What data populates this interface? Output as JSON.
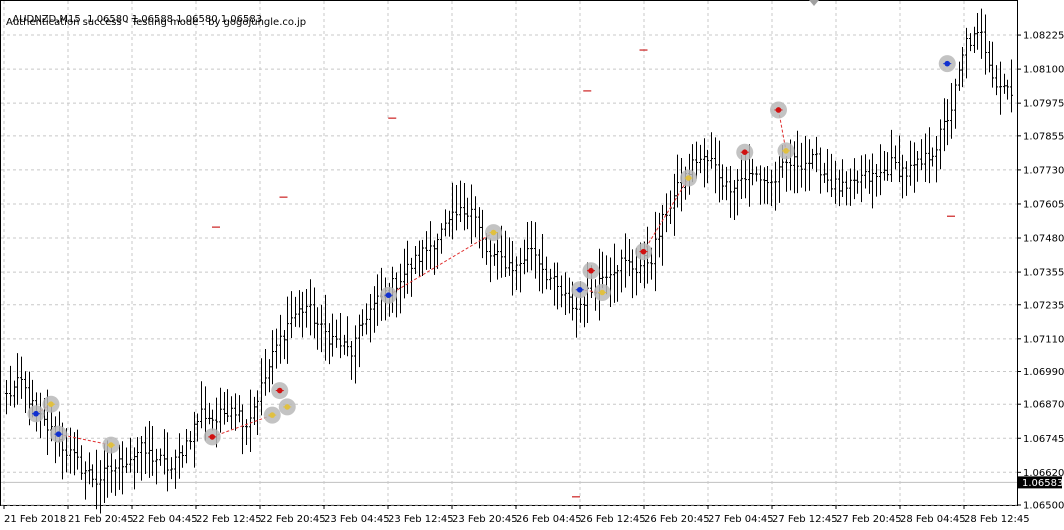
{
  "header": {
    "symbol": "AUDNZD,M15",
    "ohlc": "1.06580 1.06588 1.06580 1.06583",
    "status": "Authentication success - Testing mode : by gogojungle.co.jp"
  },
  "colors": {
    "background": "#ffffff",
    "grid": "#c8c8c8",
    "bars": "#000000",
    "buy_marker": "#1030d0",
    "sell_marker": "#d01010",
    "close_marker": "#e0c040",
    "marker_halo": "#b8b8b8",
    "trade_line": "#e03030",
    "level_dash": "#cc2020",
    "price_box": "#000000",
    "price_box_text": "#ffffff"
  },
  "chart_data": {
    "type": "ohlc",
    "symbol": "AUDNZD",
    "timeframe": "M15",
    "current_price": "1.06583",
    "ylim": [
      1.065,
      1.0835
    ],
    "y_ticks": [
      "1.08225",
      "1.08100",
      "1.07975",
      "1.07855",
      "1.07730",
      "1.07605",
      "1.07480",
      "1.07355",
      "1.07235",
      "1.07110",
      "1.06990",
      "1.06870",
      "1.06745",
      "1.06620",
      "1.06500"
    ],
    "x_ticks": [
      "21 Feb 2018",
      "21 Feb 20:45",
      "22 Feb 04:45",
      "22 Feb 12:45",
      "22 Feb 20:45",
      "23 Feb 04:45",
      "23 Feb 12:45",
      "23 Feb 20:45",
      "26 Feb 04:45",
      "26 Feb 12:45",
      "26 Feb 20:45",
      "27 Feb 04:45",
      "27 Feb 12:45",
      "27 Feb 20:45",
      "28 Feb 04:45",
      "28 Feb 12:45"
    ],
    "grid": true,
    "price_path": [
      [
        0,
        1.069
      ],
      [
        4,
        1.0695
      ],
      [
        8,
        1.0683
      ],
      [
        12,
        1.0677
      ],
      [
        16,
        1.067
      ],
      [
        20,
        1.0664
      ],
      [
        24,
        1.0659
      ],
      [
        28,
        1.0663
      ],
      [
        32,
        1.0667
      ],
      [
        36,
        1.067
      ],
      [
        40,
        1.0667
      ],
      [
        44,
        1.0663
      ],
      [
        48,
        1.0673
      ],
      [
        52,
        1.0684
      ],
      [
        56,
        1.0681
      ],
      [
        60,
        1.0687
      ],
      [
        64,
        1.068
      ],
      [
        68,
        1.0693
      ],
      [
        72,
        1.0708
      ],
      [
        76,
        1.0719
      ],
      [
        80,
        1.0723
      ],
      [
        84,
        1.0714
      ],
      [
        88,
        1.071
      ],
      [
        92,
        1.0706
      ],
      [
        96,
        1.072
      ],
      [
        100,
        1.0726
      ],
      [
        104,
        1.0732
      ],
      [
        108,
        1.0738
      ],
      [
        112,
        1.0744
      ],
      [
        116,
        1.075
      ],
      [
        120,
        1.0756
      ],
      [
        124,
        1.076
      ],
      [
        128,
        1.0742
      ],
      [
        132,
        1.074
      ],
      [
        136,
        1.0737
      ],
      [
        140,
        1.0745
      ],
      [
        144,
        1.0735
      ],
      [
        148,
        1.0727
      ],
      [
        152,
        1.0722
      ],
      [
        156,
        1.0729
      ],
      [
        160,
        1.0736
      ],
      [
        164,
        1.0739
      ],
      [
        168,
        1.0737
      ],
      [
        172,
        1.0741
      ],
      [
        176,
        1.0758
      ],
      [
        180,
        1.0768
      ],
      [
        184,
        1.0777
      ],
      [
        188,
        1.0776
      ],
      [
        192,
        1.0767
      ],
      [
        196,
        1.077
      ],
      [
        200,
        1.0771
      ],
      [
        204,
        1.0768
      ],
      [
        208,
        1.0775
      ],
      [
        212,
        1.0776
      ],
      [
        216,
        1.0776
      ],
      [
        220,
        1.0768
      ],
      [
        224,
        1.0765
      ],
      [
        228,
        1.077
      ],
      [
        232,
        1.077
      ],
      [
        236,
        1.0775
      ],
      [
        240,
        1.0772
      ],
      [
        244,
        1.0775
      ],
      [
        248,
        1.0782
      ],
      [
        252,
        1.0796
      ],
      [
        256,
        1.082
      ],
      [
        260,
        1.0822
      ],
      [
        264,
        1.0805
      ],
      [
        268,
        1.0803
      ]
    ],
    "trade_markers": [
      {
        "bar": 8,
        "price": 1.06835,
        "kind": "buy"
      },
      {
        "bar": 12,
        "price": 1.0687,
        "kind": "close"
      },
      {
        "bar": 14,
        "price": 1.0676,
        "kind": "buy"
      },
      {
        "bar": 28,
        "price": 1.0672,
        "kind": "close"
      },
      {
        "bar": 55,
        "price": 1.0675,
        "kind": "sell"
      },
      {
        "bar": 71,
        "price": 1.0683,
        "kind": "close"
      },
      {
        "bar": 73,
        "price": 1.0692,
        "kind": "sell"
      },
      {
        "bar": 75,
        "price": 1.0686,
        "kind": "close"
      },
      {
        "bar": 102,
        "price": 1.0727,
        "kind": "buy"
      },
      {
        "bar": 130,
        "price": 1.075,
        "kind": "close"
      },
      {
        "bar": 153,
        "price": 1.0729,
        "kind": "buy"
      },
      {
        "bar": 156,
        "price": 1.0736,
        "kind": "sell"
      },
      {
        "bar": 159,
        "price": 1.0728,
        "kind": "close"
      },
      {
        "bar": 170,
        "price": 1.0743,
        "kind": "sell"
      },
      {
        "bar": 182,
        "price": 1.077,
        "kind": "close"
      },
      {
        "bar": 197,
        "price": 1.07795,
        "kind": "sell"
      },
      {
        "bar": 206,
        "price": 1.0795,
        "kind": "sell"
      },
      {
        "bar": 208,
        "price": 1.078,
        "kind": "close"
      },
      {
        "bar": 251,
        "price": 1.0812,
        "kind": "buy"
      }
    ],
    "trade_lines": [
      [
        8,
        1.06835,
        12,
        1.0687
      ],
      [
        14,
        1.0676,
        28,
        1.0672
      ],
      [
        55,
        1.0675,
        71,
        1.0683
      ],
      [
        102,
        1.0727,
        130,
        1.075
      ],
      [
        153,
        1.0729,
        159,
        1.0728
      ],
      [
        170,
        1.0743,
        182,
        1.077
      ],
      [
        206,
        1.0795,
        208,
        1.078
      ]
    ],
    "level_dashes": [
      [
        103,
        1.0792
      ],
      [
        74,
        1.0763
      ],
      [
        56,
        1.0752
      ],
      [
        155,
        1.0802
      ],
      [
        170,
        1.0817
      ],
      [
        252,
        1.0756
      ],
      [
        152,
        1.0653
      ]
    ]
  }
}
